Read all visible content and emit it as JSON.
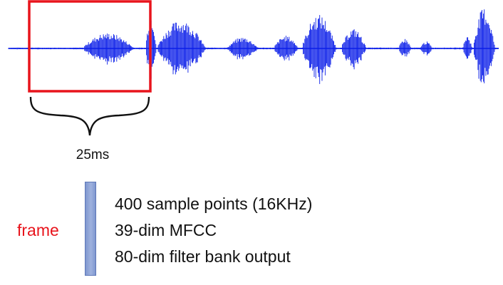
{
  "figure": {
    "duration_label": "25ms",
    "frame_label": "frame",
    "frame_features": [
      "400 sample points (16KHz)",
      "39-dim MFCC",
      "80-dim filter bank output"
    ]
  },
  "colors": {
    "waveform": "#0b1ee8",
    "window_box": "#e8141c",
    "frame_label": "#e8141c",
    "frame_bar": "#8fa5d8",
    "brace": "#111111"
  },
  "icons": {
    "brace": "curly-brace-icon"
  }
}
